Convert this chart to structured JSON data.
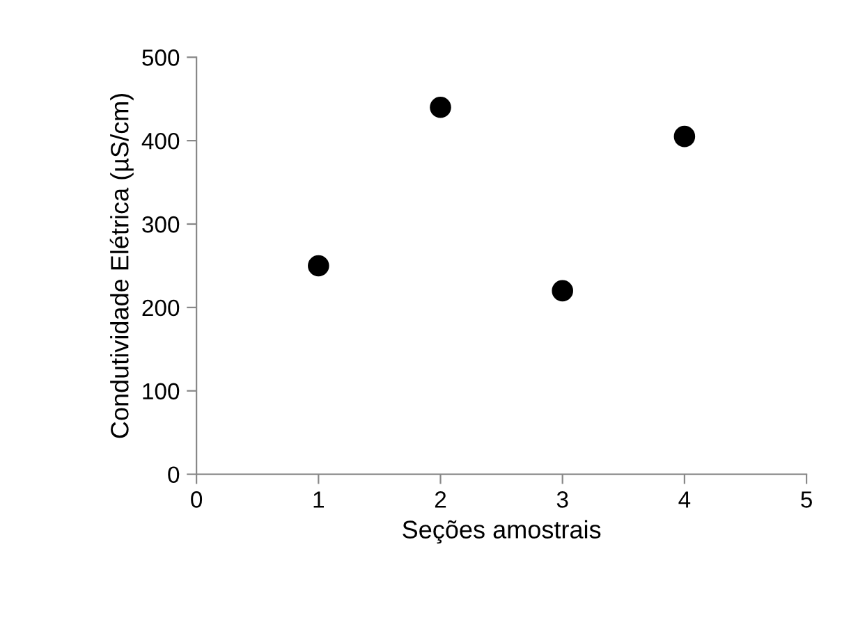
{
  "chart_data": {
    "type": "scatter",
    "xlabel": "Seções amostrais",
    "ylabel": "Condutividade Elétrica (µS/cm)",
    "x": [
      1,
      2,
      3,
      4
    ],
    "values": [
      250,
      440,
      220,
      405
    ],
    "color": "#000000",
    "marker": "circle",
    "xlim": [
      0,
      5
    ],
    "xticks": [
      0,
      1,
      2,
      3,
      4,
      5
    ],
    "ylim": [
      0,
      500
    ],
    "yticks": [
      0,
      100,
      200,
      300,
      400,
      500
    ],
    "grid": false,
    "legend": false
  }
}
